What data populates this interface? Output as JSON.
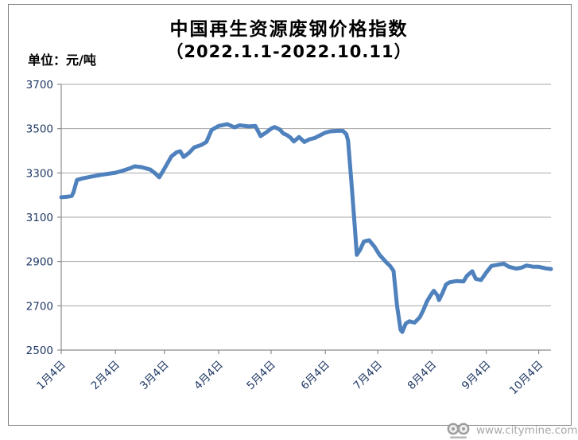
{
  "header": {
    "title": "中国再生资源废钢价格指数",
    "subtitle": "（2022.1.1-2022.10.11）",
    "unit_label": "单位：元/吨"
  },
  "watermark": {
    "url_text": "www.citymine.com.cn"
  },
  "colors": {
    "line": "#4F81BD",
    "axis_label": "#1F3864",
    "gridline": "#A6A6A6",
    "axis": "#8C8C8C",
    "border": "#7f7f7f",
    "watermark": "#a9a9a9"
  },
  "chart_data": {
    "type": "line",
    "title": "中国再生资源废钢价格指数",
    "subtitle": "（2022.1.1-2022.10.11）",
    "ylabel": "元/吨",
    "ylim": [
      2500,
      3700
    ],
    "y_ticks": [
      2500,
      2700,
      2900,
      3100,
      3300,
      3500,
      3700
    ],
    "x_domain_days": [
      0,
      280
    ],
    "x_ticks": [
      {
        "label": "1月4日",
        "day": 0
      },
      {
        "label": "2月4日",
        "day": 31
      },
      {
        "label": "3月4日",
        "day": 59
      },
      {
        "label": "4月4日",
        "day": 90
      },
      {
        "label": "5月4日",
        "day": 120
      },
      {
        "label": "6月4日",
        "day": 151
      },
      {
        "label": "7月4日",
        "day": 181
      },
      {
        "label": "8月4日",
        "day": 212
      },
      {
        "label": "9月4日",
        "day": 243
      },
      {
        "label": "10月4日",
        "day": 273
      }
    ],
    "grid": true,
    "legend": false,
    "series": [
      {
        "name": "中国再生资源废钢价格指数（元/吨）",
        "points": [
          [
            0,
            3190
          ],
          [
            3,
            3192
          ],
          [
            6,
            3196
          ],
          [
            7,
            3212
          ],
          [
            9,
            3268
          ],
          [
            12,
            3275
          ],
          [
            17,
            3283
          ],
          [
            23,
            3292
          ],
          [
            27,
            3296
          ],
          [
            31,
            3301
          ],
          [
            35,
            3310
          ],
          [
            39,
            3320
          ],
          [
            42,
            3330
          ],
          [
            46,
            3326
          ],
          [
            51,
            3315
          ],
          [
            54,
            3296
          ],
          [
            56,
            3280
          ],
          [
            58,
            3306
          ],
          [
            60,
            3333
          ],
          [
            63,
            3375
          ],
          [
            66,
            3393
          ],
          [
            68,
            3398
          ],
          [
            70,
            3372
          ],
          [
            73,
            3390
          ],
          [
            76,
            3415
          ],
          [
            80,
            3426
          ],
          [
            83,
            3440
          ],
          [
            86,
            3494
          ],
          [
            90,
            3512
          ],
          [
            95,
            3520
          ],
          [
            99,
            3506
          ],
          [
            102,
            3515
          ],
          [
            107,
            3510
          ],
          [
            111,
            3512
          ],
          [
            114,
            3466
          ],
          [
            117,
            3482
          ],
          [
            120,
            3500
          ],
          [
            122,
            3507
          ],
          [
            125,
            3496
          ],
          [
            127,
            3478
          ],
          [
            129,
            3471
          ],
          [
            131,
            3460
          ],
          [
            133,
            3442
          ],
          [
            136,
            3462
          ],
          [
            139,
            3440
          ],
          [
            142,
            3452
          ],
          [
            145,
            3458
          ],
          [
            148,
            3470
          ],
          [
            151,
            3482
          ],
          [
            154,
            3488
          ],
          [
            158,
            3490
          ],
          [
            161,
            3490
          ],
          [
            163,
            3475
          ],
          [
            164,
            3446
          ],
          [
            166,
            3250
          ],
          [
            168,
            3040
          ],
          [
            169,
            2930
          ],
          [
            171,
            2955
          ],
          [
            173,
            2990
          ],
          [
            176,
            2996
          ],
          [
            179,
            2968
          ],
          [
            182,
            2930
          ],
          [
            186,
            2895
          ],
          [
            188,
            2880
          ],
          [
            190,
            2858
          ],
          [
            192,
            2700
          ],
          [
            194,
            2592
          ],
          [
            195,
            2582
          ],
          [
            197,
            2620
          ],
          [
            199,
            2630
          ],
          [
            202,
            2624
          ],
          [
            205,
            2648
          ],
          [
            207,
            2680
          ],
          [
            209,
            2718
          ],
          [
            211,
            2745
          ],
          [
            213,
            2768
          ],
          [
            215,
            2748
          ],
          [
            216,
            2726
          ],
          [
            218,
            2758
          ],
          [
            220,
            2796
          ],
          [
            222,
            2806
          ],
          [
            226,
            2812
          ],
          [
            230,
            2810
          ],
          [
            232,
            2836
          ],
          [
            235,
            2856
          ],
          [
            237,
            2822
          ],
          [
            240,
            2816
          ],
          [
            243,
            2850
          ],
          [
            246,
            2880
          ],
          [
            250,
            2886
          ],
          [
            253,
            2890
          ],
          [
            256,
            2876
          ],
          [
            260,
            2868
          ],
          [
            263,
            2872
          ],
          [
            266,
            2882
          ],
          [
            270,
            2876
          ],
          [
            273,
            2876
          ],
          [
            277,
            2869
          ],
          [
            280,
            2866
          ]
        ]
      }
    ]
  }
}
